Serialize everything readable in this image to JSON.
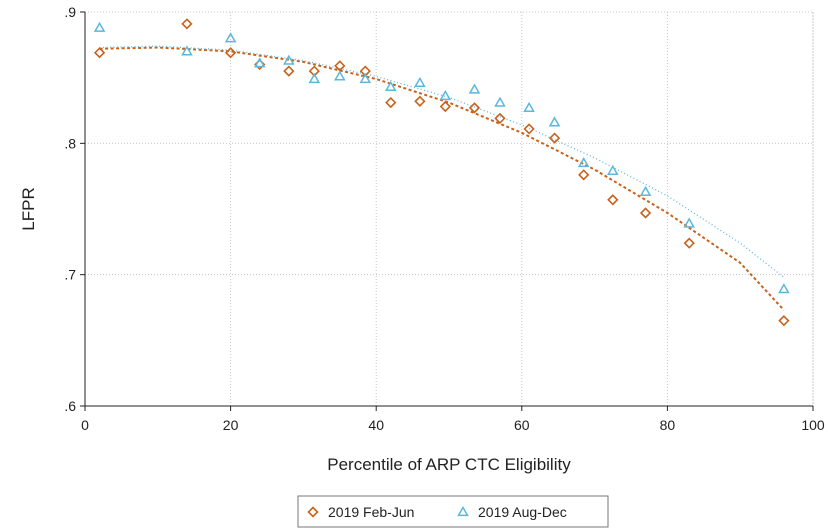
{
  "chart_data": {
    "type": "scatter",
    "title": "",
    "xlabel": "Percentile of ARP CTC Eligibility",
    "ylabel": "LFPR",
    "xlim": [
      0,
      100
    ],
    "ylim": [
      0.6,
      0.9
    ],
    "xticks": [
      0,
      20,
      40,
      60,
      80,
      100
    ],
    "xtick_labels": [
      "0",
      "20",
      "40",
      "60",
      "80",
      "100"
    ],
    "yticks": [
      0.6,
      0.7,
      0.8,
      0.9
    ],
    "ytick_labels": [
      ".6",
      ".7",
      ".8",
      ".9"
    ],
    "grid": true,
    "legend": "bottom",
    "series": [
      {
        "name": "2019 Feb-Jun",
        "marker": "diamond",
        "color": "#C8621A",
        "x": [
          2,
          14,
          20,
          24,
          28,
          31.5,
          35,
          38.5,
          42,
          46,
          49.5,
          53.5,
          57,
          61,
          64.5,
          68.5,
          72.5,
          77,
          83,
          96
        ],
        "y": [
          0.869,
          0.891,
          0.869,
          0.86,
          0.855,
          0.855,
          0.859,
          0.855,
          0.831,
          0.832,
          0.828,
          0.827,
          0.819,
          0.811,
          0.804,
          0.776,
          0.757,
          0.747,
          0.724,
          0.665
        ],
        "fit": {
          "style": "dashed",
          "x": [
            2,
            10,
            20,
            30,
            40,
            50,
            60,
            70,
            80,
            90,
            96
          ],
          "y": [
            0.872,
            0.873,
            0.87,
            0.862,
            0.849,
            0.831,
            0.808,
            0.78,
            0.747,
            0.709,
            0.673
          ]
        }
      },
      {
        "name": "2019 Aug-Dec",
        "marker": "triangle",
        "color": "#5BB8DC",
        "x": [
          2,
          14,
          20,
          24,
          28,
          31.5,
          35,
          38.5,
          42,
          46,
          49.5,
          53.5,
          57,
          61,
          64.5,
          68.5,
          72.5,
          77,
          83,
          96
        ],
        "y": [
          0.888,
          0.87,
          0.88,
          0.861,
          0.863,
          0.849,
          0.851,
          0.849,
          0.843,
          0.846,
          0.836,
          0.841,
          0.831,
          0.827,
          0.816,
          0.785,
          0.779,
          0.763,
          0.739,
          0.689
        ],
        "fit": {
          "style": "dotted",
          "x": [
            2,
            10,
            20,
            30,
            40,
            50,
            60,
            70,
            80,
            90,
            96
          ],
          "y": [
            0.873,
            0.874,
            0.871,
            0.863,
            0.851,
            0.835,
            0.814,
            0.789,
            0.76,
            0.724,
            0.698
          ]
        }
      }
    ]
  }
}
